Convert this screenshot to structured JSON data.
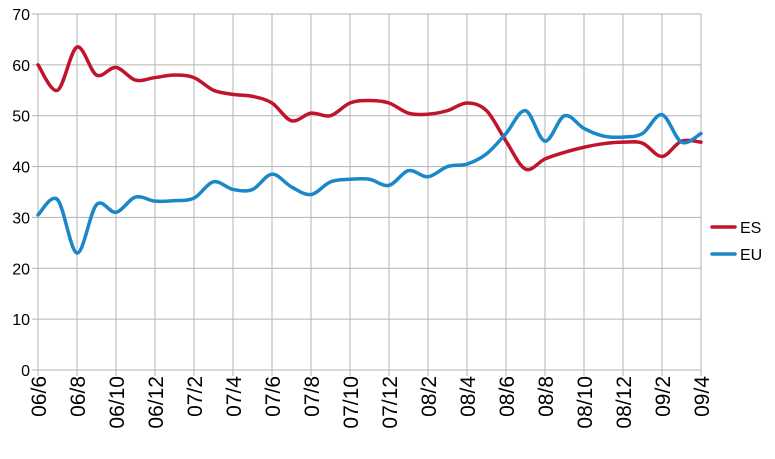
{
  "chart_data": {
    "type": "line",
    "title": "",
    "xlabel": "",
    "ylabel": "",
    "ylim": [
      0,
      70
    ],
    "yticks": [
      "0",
      "10",
      "20",
      "30",
      "40",
      "50",
      "60",
      "70"
    ],
    "x_tick_labels": [
      "06/6",
      "06/8",
      "06/10",
      "06/12",
      "07/2",
      "07/4",
      "07/6",
      "07/8",
      "07/10",
      "07/12",
      "08/2",
      "08/4",
      "08/6",
      "08/8",
      "08/10",
      "08/12",
      "09/2",
      "09/4"
    ],
    "grid": true,
    "legend": "right",
    "series": [
      {
        "name": "ES",
        "color": "#c0142c",
        "values": [
          60.0,
          55.0,
          63.5,
          58.0,
          59.5,
          57.0,
          57.5,
          58.0,
          57.5,
          55.0,
          54.2,
          53.8,
          52.5,
          49.0,
          50.5,
          50.0,
          52.5,
          53.0,
          52.5,
          50.5,
          50.3,
          51.0,
          52.5,
          51.0,
          45.0,
          39.5,
          41.5,
          42.8,
          43.8,
          44.5,
          44.8,
          44.6,
          42.0,
          45.0,
          44.8
        ]
      },
      {
        "name": "EU",
        "color": "#1a87c8",
        "values": [
          30.5,
          33.5,
          23.0,
          32.5,
          31.0,
          34.0,
          33.2,
          33.3,
          33.8,
          37.0,
          35.5,
          35.5,
          38.5,
          36.0,
          34.5,
          37.0,
          37.5,
          37.5,
          36.3,
          39.2,
          38.0,
          40.0,
          40.5,
          42.5,
          46.5,
          51.0,
          45.0,
          50.0,
          47.5,
          46.0,
          45.8,
          46.5,
          50.2,
          44.8,
          46.5
        ]
      }
    ]
  }
}
